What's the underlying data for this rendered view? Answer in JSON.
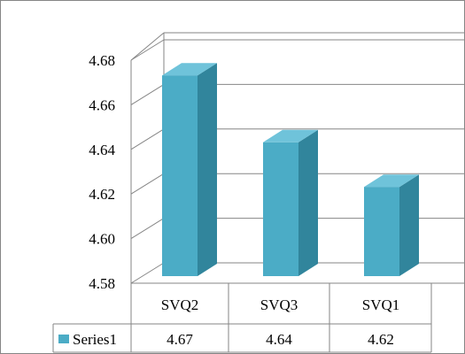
{
  "chart_data": {
    "type": "bar",
    "title": "",
    "xlabel": "",
    "ylabel": "",
    "categories": [
      "SVQ2",
      "SVQ3",
      "SVQ1"
    ],
    "series": [
      {
        "name": "Series1",
        "values": [
          4.67,
          4.64,
          4.62
        ]
      }
    ],
    "y_ticks": [
      "4.58",
      "4.60",
      "4.62",
      "4.64",
      "4.66",
      "4.68"
    ],
    "ylim": [
      4.58,
      4.68
    ],
    "grid": true,
    "legend": "data-table-left",
    "style": "3d-column-with-data-table",
    "data_table": {
      "legend_label": "Series1",
      "values_text": [
        "4.67",
        "4.64",
        "4.62"
      ]
    }
  },
  "colors": {
    "bar_front": "#4bacc6",
    "bar_side": "#31859c",
    "bar_top": "#6fc3da",
    "gridline": "#868686",
    "table_border": "#868686"
  }
}
